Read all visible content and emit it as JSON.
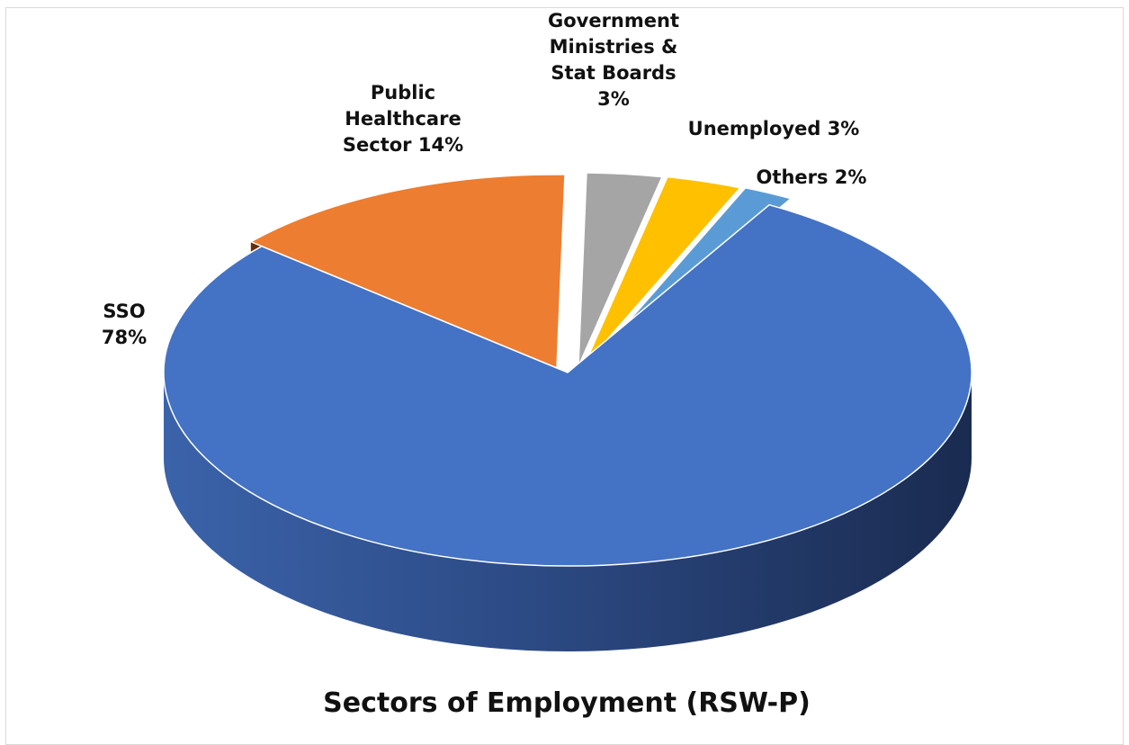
{
  "chart_data": {
    "type": "pie",
    "title": "Sectors of Employment (RSW-P)",
    "slices": [
      {
        "name": "SSO",
        "value": 78,
        "color": "#4472c4",
        "label_lines": [
          "SSO",
          "78%"
        ]
      },
      {
        "name": "Public Healthcare Sector",
        "value": 14,
        "color": "#ed7d31",
        "label_lines": [
          "Public",
          "Healthcare",
          "Sector 14%"
        ]
      },
      {
        "name": "Government Ministries & Stat Boards",
        "value": 3,
        "color": "#a5a5a5",
        "label_lines": [
          "Government",
          "Ministries &",
          "Stat Boards",
          "3%"
        ]
      },
      {
        "name": "Unemployed",
        "value": 3,
        "color": "#ffc000",
        "label_lines": [
          "Unemployed 3%"
        ]
      },
      {
        "name": "Others",
        "value": 2,
        "color": "#5b9bd5",
        "label_lines": [
          "Others 2%"
        ]
      }
    ],
    "legend": "none",
    "style": "3d-exploded"
  }
}
